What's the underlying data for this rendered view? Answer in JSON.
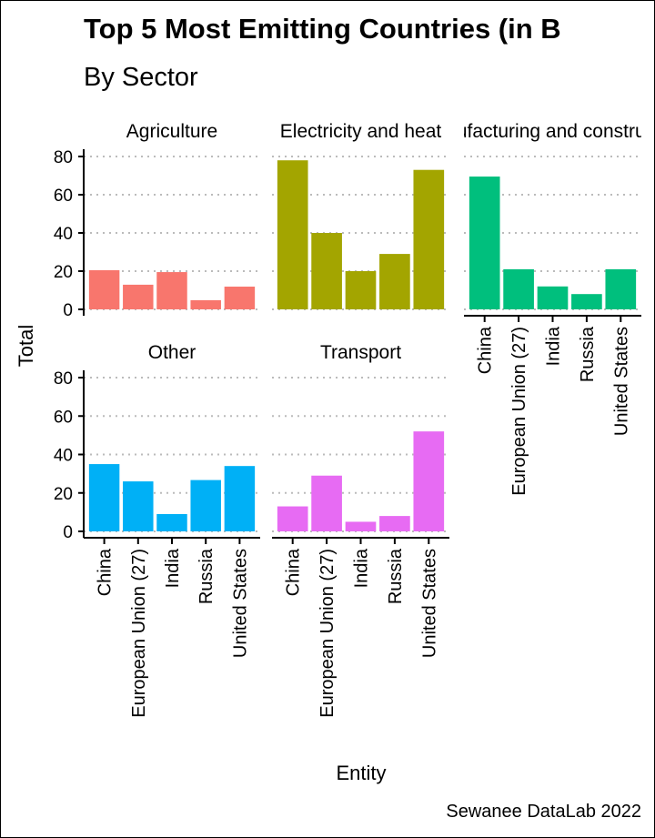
{
  "chart_data": {
    "type": "bar",
    "title": "Top 5 Most Emitting Countries (in B",
    "subtitle": "By Sector",
    "xlabel": "Entity",
    "ylabel": "Total",
    "caption": "Sewanee DataLab 2022",
    "categories": [
      "China",
      "European Union (27)",
      "India",
      "Russia",
      "United States"
    ],
    "ylim": [
      0,
      80
    ],
    "yticks": [
      0,
      20,
      40,
      60,
      80
    ],
    "grid": true,
    "facets": [
      {
        "name": "Agriculture",
        "color": "#F8766D",
        "values": [
          20.5,
          12.9,
          19.5,
          4.8,
          11.9
        ]
      },
      {
        "name": "Electricity and heat",
        "color": "#A3A500",
        "values": [
          78,
          40,
          20,
          29,
          73
        ]
      },
      {
        "name": "Manufacturing and construction",
        "color": "#00BF7D",
        "values": [
          69.5,
          21,
          12,
          8,
          21
        ]
      },
      {
        "name": "Other",
        "color": "#00B0F6",
        "values": [
          35,
          26,
          9,
          26.7,
          34
        ]
      },
      {
        "name": "Transport",
        "color": "#E76BF3",
        "values": [
          13,
          29,
          5,
          8,
          52
        ]
      }
    ]
  }
}
